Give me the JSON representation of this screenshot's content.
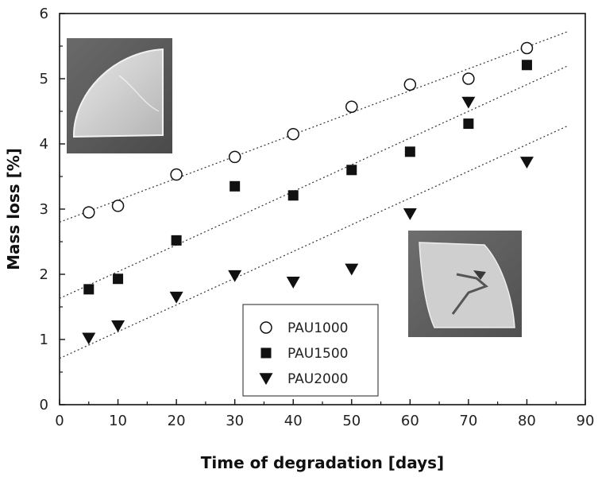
{
  "chart_data": {
    "type": "scatter",
    "xlabel": "Time of degradation [days]",
    "ylabel": "Mass loss [%]",
    "xlim": [
      0,
      90
    ],
    "ylim": [
      0,
      6
    ],
    "xticks": [
      0,
      10,
      20,
      30,
      40,
      50,
      60,
      70,
      80,
      90
    ],
    "yticks": [
      0,
      1,
      2,
      3,
      4,
      5,
      6
    ],
    "grid": false,
    "legend_position": "bottom-center",
    "series": [
      {
        "name": "PAU1000",
        "marker": "open-circle",
        "x": [
          5,
          10,
          20,
          30,
          40,
          50,
          60,
          70,
          80
        ],
        "y": [
          2.95,
          3.05,
          3.53,
          3.8,
          4.15,
          4.57,
          4.91,
          5.0,
          5.47
        ],
        "fit": {
          "intercept": 2.8,
          "slope": 0.0336
        }
      },
      {
        "name": "PAU1500",
        "marker": "filled-square",
        "x": [
          5,
          10,
          20,
          30,
          40,
          50,
          60,
          70,
          80
        ],
        "y": [
          1.77,
          1.93,
          2.52,
          3.35,
          3.21,
          3.6,
          3.88,
          4.31,
          5.21
        ],
        "fit": {
          "intercept": 1.63,
          "slope": 0.041
        }
      },
      {
        "name": "PAU2000",
        "marker": "filled-down-triangle",
        "x": [
          5,
          10,
          20,
          30,
          40,
          50,
          60,
          70,
          80
        ],
        "y": [
          1.02,
          1.21,
          1.65,
          1.98,
          1.88,
          2.08,
          2.93,
          4.64,
          3.72
        ],
        "fit": {
          "intercept": 0.71,
          "slope": 0.041
        }
      }
    ]
  }
}
